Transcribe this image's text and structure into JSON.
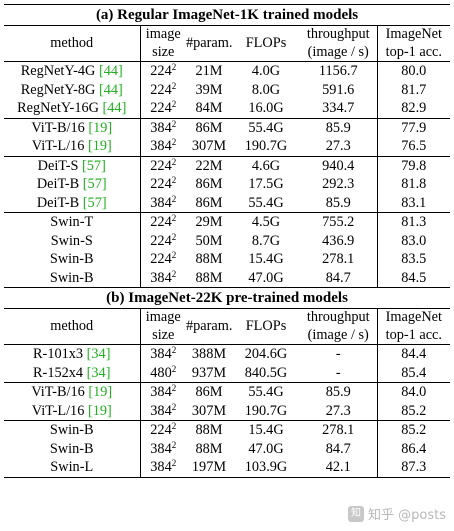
{
  "section_a": {
    "title": "(a) Regular ImageNet-1K trained models",
    "header": {
      "method": "method",
      "image_1": "image",
      "image_2": "size",
      "param": "#param.",
      "flops": "FLOPs",
      "throughput_1": "throughput",
      "throughput_2": "(image / s)",
      "imagenet_1": "ImageNet",
      "imagenet_2": "top-1 acc."
    },
    "rows": [
      {
        "method": "RegNetY-4G ",
        "ref": "[44]",
        "size": "224",
        "exp": "2",
        "param": "21M",
        "flops": "4.0G",
        "throughput": "1156.7",
        "acc": "80.0"
      },
      {
        "method": "RegNetY-8G ",
        "ref": "[44]",
        "size": "224",
        "exp": "2",
        "param": "39M",
        "flops": "8.0G",
        "throughput": "591.6",
        "acc": "81.7"
      },
      {
        "method": "RegNetY-16G ",
        "ref": "[44]",
        "size": "224",
        "exp": "2",
        "param": "84M",
        "flops": "16.0G",
        "throughput": "334.7",
        "acc": "82.9"
      },
      {
        "method": "ViT-B/16 ",
        "ref": "[19]",
        "size": "384",
        "exp": "2",
        "param": "86M",
        "flops": "55.4G",
        "throughput": "85.9",
        "acc": "77.9"
      },
      {
        "method": "ViT-L/16 ",
        "ref": "[19]",
        "size": "384",
        "exp": "2",
        "param": "307M",
        "flops": "190.7G",
        "throughput": "27.3",
        "acc": "76.5"
      },
      {
        "method": "DeiT-S ",
        "ref": "[57]",
        "size": "224",
        "exp": "2",
        "param": "22M",
        "flops": "4.6G",
        "throughput": "940.4",
        "acc": "79.8"
      },
      {
        "method": "DeiT-B ",
        "ref": "[57]",
        "size": "224",
        "exp": "2",
        "param": "86M",
        "flops": "17.5G",
        "throughput": "292.3",
        "acc": "81.8"
      },
      {
        "method": "DeiT-B ",
        "ref": "[57]",
        "size": "384",
        "exp": "2",
        "param": "86M",
        "flops": "55.4G",
        "throughput": "85.9",
        "acc": "83.1"
      },
      {
        "method": "Swin-T",
        "ref": "",
        "size": "224",
        "exp": "2",
        "param": "29M",
        "flops": "4.5G",
        "throughput": "755.2",
        "acc": "81.3"
      },
      {
        "method": "Swin-S",
        "ref": "",
        "size": "224",
        "exp": "2",
        "param": "50M",
        "flops": "8.7G",
        "throughput": "436.9",
        "acc": "83.0"
      },
      {
        "method": "Swin-B",
        "ref": "",
        "size": "224",
        "exp": "2",
        "param": "88M",
        "flops": "15.4G",
        "throughput": "278.1",
        "acc": "83.5"
      },
      {
        "method": "Swin-B",
        "ref": "",
        "size": "384",
        "exp": "2",
        "param": "88M",
        "flops": "47.0G",
        "throughput": "84.7",
        "acc": "84.5"
      }
    ]
  },
  "section_b": {
    "title": "(b) ImageNet-22K pre-trained models",
    "header": {
      "method": "method",
      "image_1": "image",
      "image_2": "size",
      "param": "#param.",
      "flops": "FLOPs",
      "throughput_1": "throughput",
      "throughput_2": "(image / s)",
      "imagenet_1": "ImageNet",
      "imagenet_2": "top-1 acc."
    },
    "rows": [
      {
        "method": "R-101x3 ",
        "ref": "[34]",
        "size": "384",
        "exp": "2",
        "param": "388M",
        "flops": "204.6G",
        "throughput": "-",
        "acc": "84.4"
      },
      {
        "method": "R-152x4 ",
        "ref": "[34]",
        "size": "480",
        "exp": "2",
        "param": "937M",
        "flops": "840.5G",
        "throughput": "-",
        "acc": "85.4"
      },
      {
        "method": "ViT-B/16 ",
        "ref": "[19]",
        "size": "384",
        "exp": "2",
        "param": "86M",
        "flops": "55.4G",
        "throughput": "85.9",
        "acc": "84.0"
      },
      {
        "method": "ViT-L/16 ",
        "ref": "[19]",
        "size": "384",
        "exp": "2",
        "param": "307M",
        "flops": "190.7G",
        "throughput": "27.3",
        "acc": "85.2"
      },
      {
        "method": "Swin-B",
        "ref": "",
        "size": "224",
        "exp": "2",
        "param": "88M",
        "flops": "15.4G",
        "throughput": "278.1",
        "acc": "85.2"
      },
      {
        "method": "Swin-B",
        "ref": "",
        "size": "384",
        "exp": "2",
        "param": "88M",
        "flops": "47.0G",
        "throughput": "84.7",
        "acc": "86.4"
      },
      {
        "method": "Swin-L",
        "ref": "",
        "size": "384",
        "exp": "2",
        "param": "197M",
        "flops": "103.9G",
        "throughput": "42.1",
        "acc": "87.3"
      }
    ]
  },
  "watermark": {
    "text": "知乎 @posts",
    "logo_glyph": "知"
  }
}
